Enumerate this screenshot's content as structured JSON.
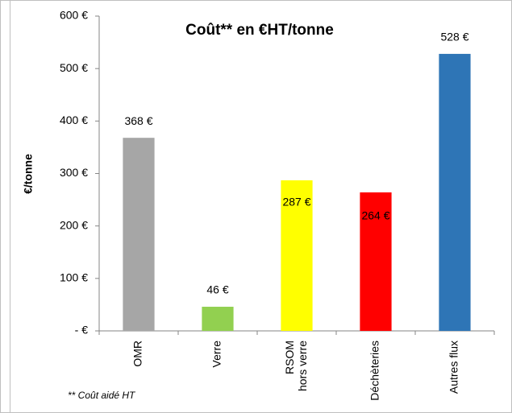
{
  "chart_data": {
    "type": "bar",
    "title": "Coût** en €HT/tonne",
    "y_label": "€/tonne",
    "note": "** Coût aidé HT",
    "categories": [
      "OMR",
      "Verre",
      "RSOM\nhors verre",
      "Déchèteries",
      "Autres flux"
    ],
    "values": [
      368,
      46,
      287,
      264,
      528
    ],
    "value_labels": [
      "368 €",
      "46 €",
      "287 €",
      "264 €",
      "528 €"
    ],
    "colors": [
      "#a6a6a6",
      "#92d050",
      "#ffff00",
      "#ff0000",
      "#2e75b6"
    ],
    "ylim": [
      0,
      600
    ],
    "yticks": [
      {
        "value": 0,
        "label": "-  €"
      },
      {
        "value": 100,
        "label": "100 €"
      },
      {
        "value": 200,
        "label": "200 €"
      },
      {
        "value": 300,
        "label": "300 €"
      },
      {
        "value": 400,
        "label": "400 €"
      },
      {
        "value": 500,
        "label": "500 €"
      },
      {
        "value": 600,
        "label": "600 €"
      }
    ],
    "grid": false
  }
}
